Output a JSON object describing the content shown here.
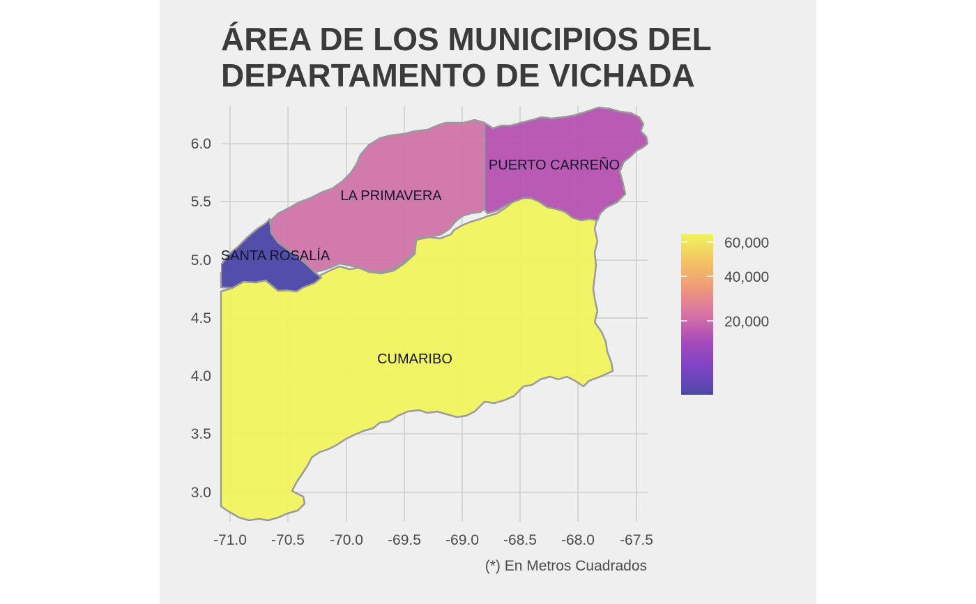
{
  "title": {
    "line1": "ÁREA DE LOS MUNICIPIOS DEL",
    "line2": "DEPARTAMENTO DE VICHADA"
  },
  "caption": "(*) En Metros Cuadrados",
  "x_axis": {
    "ticks": [
      "-71.0",
      "-70.5",
      "-70.0",
      "-69.5",
      "-69.0",
      "-68.5",
      "-68.0",
      "-67.5"
    ]
  },
  "y_axis": {
    "ticks": [
      "3.0",
      "3.5",
      "4.0",
      "4.5",
      "5.0",
      "5.5",
      "6.0"
    ]
  },
  "regions": [
    {
      "name": "CUMARIBO",
      "label": "CUMARIBO",
      "color": "#f0f35c"
    },
    {
      "name": "LA PRIMAVERA",
      "label": "LA PRIMAVERA",
      "color": "#d073a6"
    },
    {
      "name": "PUERTO CARREÑO",
      "label": "PUERTO CARREÑO",
      "color": "#b552b1"
    },
    {
      "name": "SANTA ROSALÍA",
      "label": "SANTA ROSALÍA",
      "color": "#4d48a6"
    }
  ],
  "legend": {
    "labels": [
      "60,000",
      "40,000",
      "20,000"
    ],
    "gradient": [
      "#f0f35c",
      "#f4c361",
      "#ee9a79",
      "#d973a5",
      "#a64ab9",
      "#7f43c7",
      "#4f48a8"
    ]
  },
  "colors": {
    "panel_background": "#efefef",
    "grid": "#d5d5d5",
    "border": "#9a9a9a"
  }
}
